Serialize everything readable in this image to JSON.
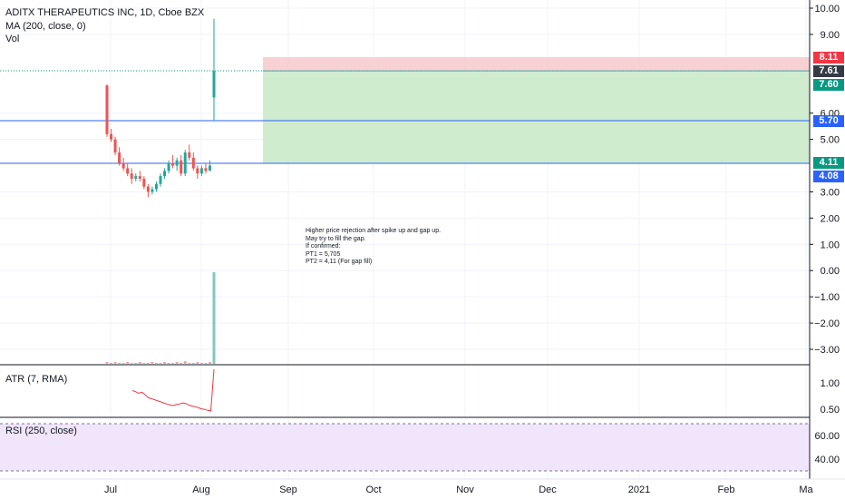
{
  "header": {
    "symbol_line": "ADITX THERAPEUTICS INC, 1D, Cboe BZX",
    "ma_line": "MA (200, close, 0)",
    "vol_line": "Vol"
  },
  "panes": {
    "atr_label": "ATR (7, RMA)",
    "rsi_label": "RSI (250, close)"
  },
  "price_axis": {
    "labels": [
      "10.00",
      "9.00",
      "6.00",
      "5.00",
      "3.00",
      "2.00",
      "1.00",
      "0.00",
      "−1.00",
      "−2.00",
      "−3.00"
    ]
  },
  "atr_axis": {
    "labels": [
      "1.00",
      "0.50"
    ]
  },
  "rsi_axis": {
    "labels": [
      "60.00",
      "40.00"
    ]
  },
  "time_axis": {
    "labels": [
      "Jul",
      "Aug",
      "Sep",
      "Oct",
      "Nov",
      "Dec",
      "2021",
      "Feb",
      "Ma"
    ]
  },
  "price_tags": {
    "stop": {
      "text": "8.11",
      "color": "#f23645"
    },
    "last": {
      "text": "7.61",
      "color": "#363a45"
    },
    "entry": {
      "text": "7.60",
      "color": "#089981"
    },
    "line1": {
      "text": "5.70",
      "color": "#2962ff"
    },
    "target": {
      "text": "4.11",
      "color": "#089981"
    },
    "line2": {
      "text": "4.08",
      "color": "#2962ff"
    }
  },
  "annotation": {
    "text": "Higher price rejection after spike up and gap up.\nMay try to fill the gap.\nIf confirmed:\nPT1 = 5,705\nPT2 = 4,11 (For gap fill)"
  },
  "chart_data": {
    "type": "candlestick",
    "candles_ohlc": [
      [
        7.05,
        7.1,
        5.1,
        5.2
      ],
      [
        5.2,
        5.4,
        4.9,
        5.0
      ],
      [
        5.0,
        5.1,
        4.4,
        4.5
      ],
      [
        4.5,
        4.7,
        4.0,
        4.1
      ],
      [
        4.1,
        4.3,
        3.8,
        3.9
      ],
      [
        3.9,
        4.1,
        3.6,
        3.7
      ],
      [
        3.7,
        3.9,
        3.3,
        3.5
      ],
      [
        3.5,
        3.7,
        3.4,
        3.6
      ],
      [
        3.6,
        3.8,
        3.4,
        3.5
      ],
      [
        3.5,
        3.6,
        3.1,
        3.2
      ],
      [
        3.2,
        3.3,
        2.8,
        3.0
      ],
      [
        3.0,
        3.2,
        2.9,
        3.1
      ],
      [
        3.1,
        3.4,
        3.0,
        3.3
      ],
      [
        3.3,
        3.7,
        3.2,
        3.6
      ],
      [
        3.6,
        3.9,
        3.5,
        3.8
      ],
      [
        3.8,
        4.2,
        3.7,
        4.1
      ],
      [
        4.1,
        4.4,
        3.9,
        4.0
      ],
      [
        4.0,
        4.3,
        3.8,
        4.2
      ],
      [
        4.2,
        4.4,
        3.6,
        3.7
      ],
      [
        3.7,
        4.6,
        3.6,
        4.5
      ],
      [
        4.5,
        4.8,
        4.2,
        4.3
      ],
      [
        4.3,
        4.5,
        3.8,
        3.9
      ],
      [
        3.9,
        4.0,
        3.5,
        3.7
      ],
      [
        3.7,
        4.0,
        3.6,
        3.9
      ],
      [
        3.9,
        4.1,
        3.7,
        3.8
      ],
      [
        3.8,
        4.2,
        3.9,
        4.0
      ],
      [
        6.6,
        9.6,
        5.7,
        7.61
      ]
    ],
    "horizontal_lines": [
      5.7,
      4.08
    ],
    "position": {
      "entry": 7.6,
      "stop": 8.11,
      "target": 4.11
    },
    "ylim": [
      -3.5,
      10.3
    ],
    "atr_ylim": [
      0.35,
      1.3
    ],
    "atr_values": [
      0.85,
      0.83,
      0.8,
      0.82,
      0.78,
      0.72,
      0.7,
      0.68,
      0.66,
      0.64,
      0.62,
      0.6,
      0.58,
      0.57,
      0.59,
      0.6,
      0.62,
      0.61,
      0.58,
      0.56,
      0.55,
      0.53,
      0.51,
      0.5,
      0.48,
      0.47,
      1.25
    ],
    "rsi_ylim": [
      30,
      72
    ],
    "rsi_levels": [
      70,
      30
    ],
    "volume_rel": [
      0.02,
      0.01,
      0.02,
      0.01,
      0.01,
      0.02,
      0.01,
      0.01,
      0.02,
      0.01,
      0.01,
      0.02,
      0.01,
      0.01,
      0.02,
      0.01,
      0.01,
      0.02,
      0.01,
      0.03,
      0.01,
      0.01,
      0.02,
      0.01,
      0.01,
      0.02,
      1.0
    ]
  }
}
